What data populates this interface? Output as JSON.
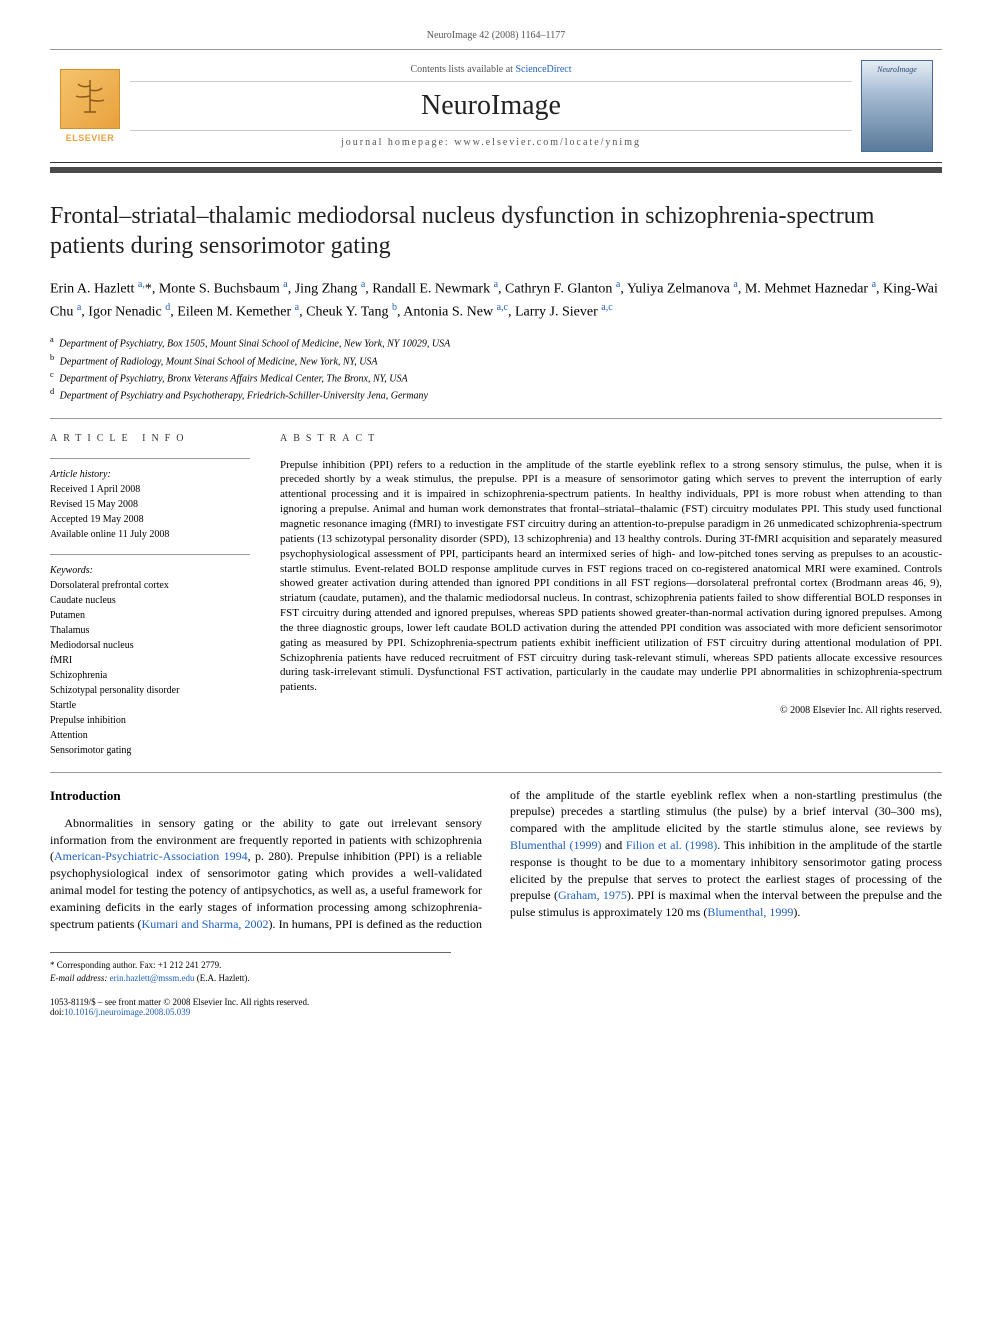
{
  "header": {
    "citation": "NeuroImage 42 (2008) 1164–1177",
    "contents_text": "Contents lists available at ",
    "contents_link": "ScienceDirect",
    "journal": "NeuroImage",
    "homepage_label": "journal homepage: ",
    "homepage_url": "www.elsevier.com/locate/ynimg",
    "publisher": "ELSEVIER",
    "cover_label": "NeuroImage"
  },
  "article": {
    "title": "Frontal–striatal–thalamic mediodorsal nucleus dysfunction in schizophrenia-spectrum patients during sensorimotor gating",
    "authors_html": "Erin A. Hazlett <sup>a,</sup>*, Monte S. Buchsbaum <sup>a</sup>, Jing Zhang <sup>a</sup>, Randall E. Newmark <sup>a</sup>, Cathryn F. Glanton <sup>a</sup>, Yuliya Zelmanova <sup>a</sup>, M. Mehmet Haznedar <sup>a</sup>, King-Wai Chu <sup>a</sup>, Igor Nenadic <sup>d</sup>, Eileen M. Kemether <sup>a</sup>, Cheuk Y. Tang <sup>b</sup>, Antonia S. New <sup>a,c</sup>, Larry J. Siever <sup>a,c</sup>",
    "affiliations": [
      {
        "sup": "a",
        "text": "Department of Psychiatry, Box 1505, Mount Sinai School of Medicine, New York, NY 10029, USA"
      },
      {
        "sup": "b",
        "text": "Department of Radiology, Mount Sinai School of Medicine, New York, NY, USA"
      },
      {
        "sup": "c",
        "text": "Department of Psychiatry, Bronx Veterans Affairs Medical Center, The Bronx, NY, USA"
      },
      {
        "sup": "d",
        "text": "Department of Psychiatry and Psychotherapy, Friedrich-Schiller-University Jena, Germany"
      }
    ]
  },
  "info": {
    "heading": "ARTICLE INFO",
    "history_label": "Article history:",
    "history": [
      "Received 1 April 2008",
      "Revised 15 May 2008",
      "Accepted 19 May 2008",
      "Available online 11 July 2008"
    ],
    "keywords_label": "Keywords:",
    "keywords": [
      "Dorsolateral prefrontal cortex",
      "Caudate nucleus",
      "Putamen",
      "Thalamus",
      "Mediodorsal nucleus",
      "fMRI",
      "Schizophrenia",
      "Schizotypal personality disorder",
      "Startle",
      "Prepulse inhibition",
      "Attention",
      "Sensorimotor gating"
    ]
  },
  "abstract": {
    "heading": "ABSTRACT",
    "text": "Prepulse inhibition (PPI) refers to a reduction in the amplitude of the startle eyeblink reflex to a strong sensory stimulus, the pulse, when it is preceded shortly by a weak stimulus, the prepulse. PPI is a measure of sensorimotor gating which serves to prevent the interruption of early attentional processing and it is impaired in schizophrenia-spectrum patients. In healthy individuals, PPI is more robust when attending to than ignoring a prepulse. Animal and human work demonstrates that frontal–striatal–thalamic (FST) circuitry modulates PPI. This study used functional magnetic resonance imaging (fMRI) to investigate FST circuitry during an attention-to-prepulse paradigm in 26 unmedicated schizophrenia-spectrum patients (13 schizotypal personality disorder (SPD), 13 schizophrenia) and 13 healthy controls. During 3T-fMRI acquisition and separately measured psychophysiological assessment of PPI, participants heard an intermixed series of high- and low-pitched tones serving as prepulses to an acoustic-startle stimulus. Event-related BOLD response amplitude curves in FST regions traced on co-registered anatomical MRI were examined. Controls showed greater activation during attended than ignored PPI conditions in all FST regions—dorsolateral prefrontal cortex (Brodmann areas 46, 9), striatum (caudate, putamen), and the thalamic mediodorsal nucleus. In contrast, schizophrenia patients failed to show differential BOLD responses in FST circuitry during attended and ignored prepulses, whereas SPD patients showed greater-than-normal activation during ignored prepulses. Among the three diagnostic groups, lower left caudate BOLD activation during the attended PPI condition was associated with more deficient sensorimotor gating as measured by PPI. Schizophrenia-spectrum patients exhibit inefficient utilization of FST circuitry during attentional modulation of PPI. Schizophrenia patients have reduced recruitment of FST circuitry during task-relevant stimuli, whereas SPD patients allocate excessive resources during task-irrelevant stimuli. Dysfunctional FST activation, particularly in the caudate may underlie PPI abnormalities in schizophrenia-spectrum patients.",
    "copyright": "© 2008 Elsevier Inc. All rights reserved."
  },
  "body": {
    "heading": "Introduction",
    "para1_a": "Abnormalities in sensory gating or the ability to gate out irrelevant sensory information from the environment are frequently reported in patients with schizophrenia (",
    "para1_link1": "American-Psychiatric-Association 1994",
    "para1_b": ", p. 280). Prepulse inhibition (PPI) is a reliable psychophysiological index of sensorimotor gating which provides a well-validated animal model for testing the potency of antipsychotics, as well as, a useful framework for examining deficits in the early stages of information processing among schizophrenia-spectrum patients (",
    "para1_link2": "Kumari and Sharma, 2002",
    "para1_c": "). In humans, PPI is defined as the reduction of the amplitude of the startle eyeblink reflex when a non-startling prestimulus (the prepulse) precedes a startling stimulus (the pulse) by a brief interval (30–300 ms), compared with the amplitude elicited by the startle stimulus alone, see reviews by ",
    "para1_link3": "Blumenthal (1999)",
    "para1_d": " and ",
    "para1_link4": "Filion et al. (1998)",
    "para1_e": ". This inhibition in the amplitude of the startle response is thought to be due to a momentary inhibitory sensorimotor gating process elicited by the prepulse that serves to protect the earliest stages of processing of the prepulse (",
    "para1_link5": "Graham, 1975",
    "para1_f": "). PPI is maximal when the interval between the prepulse and the pulse stimulus is approximately 120 ms (",
    "para1_link6": "Blumenthal, 1999",
    "para1_g": ")."
  },
  "footnotes": {
    "corr": "* Corresponding author. Fax: +1 212 241 2779.",
    "email_label": "E-mail address: ",
    "email": "erin.hazlett@mssm.edu",
    "email_tail": " (E.A. Hazlett).",
    "front_matter": "1053-8119/$ – see front matter © 2008 Elsevier Inc. All rights reserved.",
    "doi_label": "doi:",
    "doi": "10.1016/j.neuroimage.2008.05.039"
  },
  "colors": {
    "link": "#2060c0",
    "rule_dark": "#4a4a4a",
    "rule_light": "#999999",
    "elsevier_orange": "#e8a13d"
  }
}
